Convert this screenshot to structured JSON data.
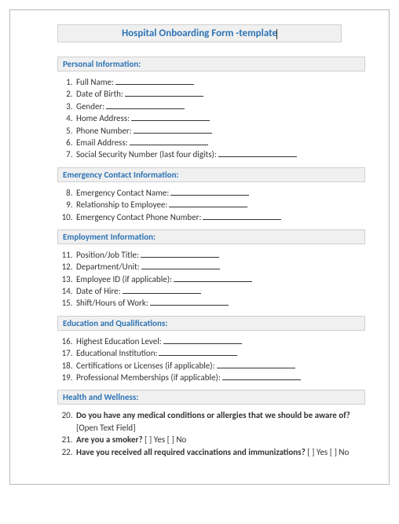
{
  "title": "Hospital Onboarding Form -template",
  "sections": {
    "personal": "Personal Information:",
    "emergency": "Emergency Contact Information:",
    "employment": "Employment Information:",
    "education": "Education and Qualifications:",
    "health": "Health and Wellness:"
  },
  "items": {
    "full_name": "Full Name:",
    "dob": "Date of Birth:",
    "gender": "Gender:",
    "home_address": "Home Address:",
    "phone": "Phone Number:",
    "email": "Email Address:",
    "ssn": "Social Security Number (last four digits):",
    "ec_name": "Emergency Contact Name:",
    "ec_relation": "Relationship to Employee:",
    "ec_phone": "Emergency Contact Phone Number:",
    "position": "Position/Job Title:",
    "department": "Department/Unit:",
    "emp_id": "Employee ID (if applicable):",
    "hire_date": "Date of Hire:",
    "shift": "Shift/Hours of Work:",
    "edu_level": "Highest Education Level:",
    "edu_inst": "Educational Institution:",
    "certs": "Certifications or Licenses (if applicable):",
    "prof_mem": "Professional Memberships (if applicable):",
    "medical": "Do you have any medical conditions or allergies that we should be aware of?",
    "open_text": " [Open Text Field]",
    "smoker": "Are you a smoker?",
    "yes_no": " [ ] Yes [ ] No",
    "vaccinations": "Have you received all required vaccinations and immunizations?"
  }
}
